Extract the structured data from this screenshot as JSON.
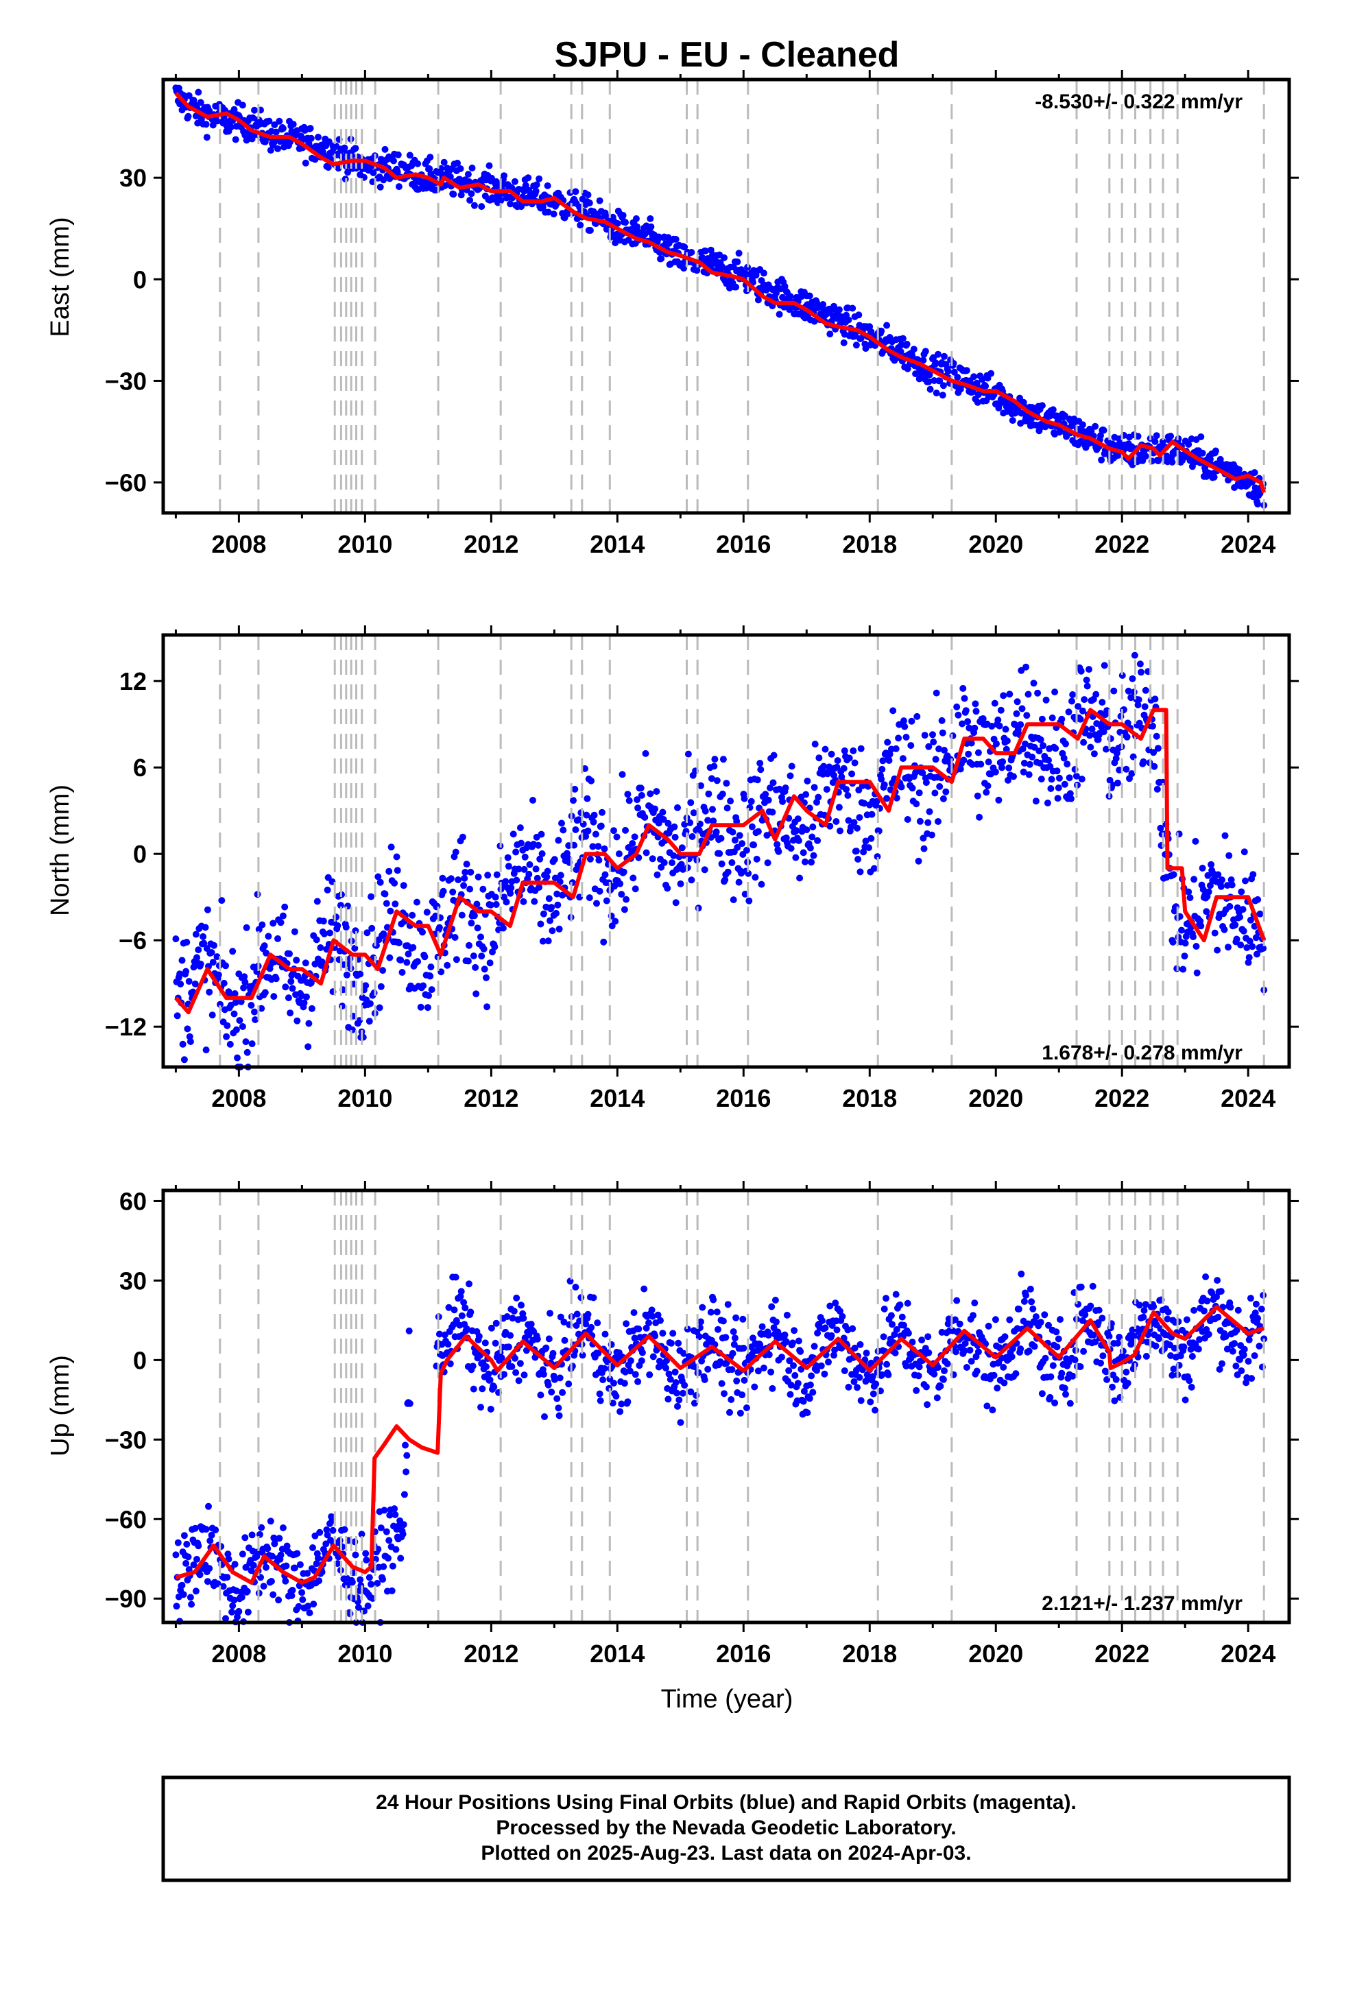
{
  "title": "SJPU  - EU - Cleaned",
  "colors": {
    "observations": "#0000ff",
    "model": "#ff0000",
    "event_lines": "#bbbbbb",
    "frame": "#000000"
  },
  "chart_data": [
    {
      "type": "scatter",
      "panel": "east",
      "ylabel": "East (mm)",
      "xlabel": "",
      "xlim": [
        2006.8,
        2024.65
      ],
      "ylim": [
        -69,
        59
      ],
      "yticks": [
        -60,
        -30,
        0,
        30
      ],
      "xticks": [
        2008,
        2010,
        2012,
        2014,
        2016,
        2018,
        2020,
        2022,
        2024
      ],
      "rate_text": "-8.530+/- 0.322 mm/yr",
      "rate_position": "top-right",
      "series": [
        {
          "kind": "daily-positions",
          "x": [
            2007.0,
            2007.4,
            2007.8,
            2008.2,
            2008.6,
            2009.0,
            2009.5,
            2010.0,
            2010.5,
            2011.0,
            2011.5,
            2012.0,
            2012.5,
            2013.0,
            2013.5,
            2014.0,
            2014.5,
            2015.0,
            2015.5,
            2016.0,
            2016.5,
            2017.0,
            2017.5,
            2018.0,
            2018.5,
            2019.0,
            2019.5,
            2020.0,
            2020.5,
            2021.0,
            2021.5,
            2022.0,
            2022.5,
            2023.0,
            2023.5,
            2024.0,
            2024.25
          ],
          "y": [
            54,
            49,
            47,
            46,
            42,
            41,
            38,
            33,
            33,
            30,
            29,
            27,
            25,
            23,
            20,
            15,
            12,
            6,
            4,
            1,
            -4,
            -8,
            -12,
            -17,
            -21,
            -27,
            -30,
            -34,
            -39,
            -43,
            -47,
            -51,
            -50,
            -51,
            -55,
            -59,
            -63
          ],
          "spread": 2.5
        },
        {
          "kind": "model",
          "x": [
            2007.0,
            2007.2,
            2007.5,
            2007.8,
            2008.0,
            2008.2,
            2008.5,
            2008.8,
            2009.0,
            2009.3,
            2009.5,
            2009.8,
            2010.0,
            2010.3,
            2010.5,
            2010.8,
            2011.0,
            2011.2,
            2011.25,
            2011.5,
            2011.8,
            2012.0,
            2012.3,
            2012.5,
            2012.8,
            2013.0,
            2013.3,
            2013.5,
            2013.8,
            2014.0,
            2014.3,
            2014.5,
            2014.8,
            2015.0,
            2015.3,
            2015.5,
            2015.8,
            2016.0,
            2016.3,
            2016.5,
            2016.8,
            2017.0,
            2017.3,
            2017.5,
            2017.8,
            2018.0,
            2018.3,
            2018.5,
            2018.8,
            2019.0,
            2019.3,
            2019.5,
            2019.8,
            2020.0,
            2020.3,
            2020.5,
            2020.8,
            2021.0,
            2021.3,
            2021.5,
            2021.8,
            2022.0,
            2022.1,
            2022.3,
            2022.5,
            2022.6,
            2022.8,
            2022.95,
            2023.2,
            2023.5,
            2023.8,
            2024.0,
            2024.2,
            2024.25
          ],
          "y": [
            55,
            51,
            48,
            49,
            47,
            44,
            42,
            42,
            40,
            36,
            34,
            35,
            35,
            33,
            30,
            31,
            30,
            28,
            30,
            27,
            28,
            26,
            26,
            23,
            23,
            24,
            20,
            18,
            17,
            15,
            12,
            11,
            8,
            7,
            5,
            2,
            1,
            0,
            -5,
            -7,
            -7,
            -9,
            -13,
            -14,
            -15,
            -17,
            -21,
            -23,
            -25,
            -27,
            -30,
            -31,
            -33,
            -33,
            -36,
            -39,
            -42,
            -43,
            -46,
            -47,
            -50,
            -51,
            -53,
            -49,
            -50,
            -52,
            -48,
            -50,
            -53,
            -56,
            -59,
            -58,
            -60,
            -63
          ]
        }
      ]
    },
    {
      "type": "scatter",
      "panel": "north",
      "ylabel": "North (mm)",
      "xlabel": "",
      "xlim": [
        2006.8,
        2024.65
      ],
      "ylim": [
        -14.8,
        15.2
      ],
      "yticks": [
        -12,
        -6,
        0,
        6,
        12
      ],
      "xticks": [
        2008,
        2010,
        2012,
        2014,
        2016,
        2018,
        2020,
        2022,
        2024
      ],
      "rate_text": "1.678+/- 0.278 mm/yr",
      "rate_position": "bottom-right",
      "series": [
        {
          "kind": "daily-positions",
          "x": [
            2007.0,
            2007.5,
            2008.0,
            2008.5,
            2009.0,
            2009.5,
            2010.0,
            2010.5,
            2011.0,
            2011.5,
            2012.0,
            2012.5,
            2013.0,
            2013.5,
            2014.0,
            2014.5,
            2015.0,
            2015.5,
            2016.0,
            2016.5,
            2017.0,
            2017.5,
            2018.0,
            2018.5,
            2019.0,
            2019.5,
            2020.0,
            2020.5,
            2021.0,
            2021.5,
            2022.0,
            2022.5,
            2022.75,
            2023.0,
            2023.5,
            2024.0,
            2024.25
          ],
          "y": [
            -9,
            -9,
            -10,
            -8,
            -8,
            -7,
            -7,
            -5,
            -6,
            -4,
            -4,
            -2,
            -2,
            0,
            0,
            1,
            1,
            2,
            2,
            2,
            3,
            4,
            4,
            5,
            6,
            7,
            8,
            8,
            8,
            8,
            9,
            9,
            -2,
            -4,
            -4,
            -3,
            -5
          ],
          "spread": 2.2
        },
        {
          "kind": "model",
          "x": [
            2007.0,
            2007.2,
            2007.5,
            2007.8,
            2008.0,
            2008.2,
            2008.5,
            2008.8,
            2009.0,
            2009.3,
            2009.5,
            2009.8,
            2010.0,
            2010.2,
            2010.5,
            2010.8,
            2011.0,
            2011.2,
            2011.5,
            2011.8,
            2012.0,
            2012.3,
            2012.5,
            2012.8,
            2013.0,
            2013.3,
            2013.5,
            2013.8,
            2014.0,
            2014.3,
            2014.5,
            2014.8,
            2015.0,
            2015.3,
            2015.5,
            2015.8,
            2016.0,
            2016.3,
            2016.5,
            2016.8,
            2017.0,
            2017.3,
            2017.5,
            2017.8,
            2018.0,
            2018.3,
            2018.5,
            2018.8,
            2019.0,
            2019.3,
            2019.5,
            2019.8,
            2020.0,
            2020.3,
            2020.5,
            2020.8,
            2021.0,
            2021.3,
            2021.5,
            2021.8,
            2022.0,
            2022.3,
            2022.5,
            2022.7,
            2022.72,
            2022.95,
            2023.0,
            2023.3,
            2023.5,
            2023.8,
            2024.0,
            2024.25
          ],
          "y": [
            -10,
            -11,
            -8,
            -10,
            -10,
            -10,
            -7,
            -8,
            -8,
            -9,
            -6,
            -7,
            -7,
            -8,
            -4,
            -5,
            -5,
            -7,
            -3,
            -4,
            -4,
            -5,
            -2,
            -2,
            -2,
            -3,
            0,
            0,
            -1,
            0,
            2,
            1,
            0,
            0,
            2,
            2,
            2,
            3,
            1,
            4,
            3,
            2,
            5,
            5,
            5,
            3,
            6,
            6,
            6,
            5,
            8,
            8,
            7,
            7,
            9,
            9,
            9,
            8,
            10,
            9,
            9,
            8,
            10,
            10,
            -1,
            -1,
            -4,
            -6,
            -3,
            -3,
            -3,
            -6
          ]
        }
      ]
    },
    {
      "type": "scatter",
      "panel": "up",
      "ylabel": "Up (mm)",
      "xlabel": "Time (year)",
      "xlim": [
        2006.8,
        2024.65
      ],
      "ylim": [
        -99,
        64
      ],
      "yticks": [
        -90,
        -60,
        -30,
        0,
        30,
        60
      ],
      "xticks": [
        2008,
        2010,
        2012,
        2014,
        2016,
        2018,
        2020,
        2022,
        2024
      ],
      "rate_text": "2.121+/- 1.237 mm/yr",
      "rate_position": "bottom-right",
      "series": [
        {
          "kind": "daily-positions",
          "x": [
            2007.0,
            2007.5,
            2008.0,
            2008.5,
            2009.0,
            2009.5,
            2010.0,
            2010.3,
            2010.6,
            2010.7,
            2011.0,
            2011.5,
            2012.0,
            2012.5,
            2013.0,
            2013.5,
            2014.0,
            2014.5,
            2015.0,
            2015.5,
            2016.0,
            2016.5,
            2017.0,
            2017.5,
            2018.0,
            2018.5,
            2019.0,
            2019.5,
            2020.0,
            2020.5,
            2021.0,
            2021.5,
            2022.0,
            2022.5,
            2023.0,
            2023.5,
            2024.0,
            2024.25
          ],
          "y": [
            -80,
            -75,
            -82,
            -78,
            -80,
            -76,
            -80,
            -76,
            -72,
            0,
            0,
            10,
            0,
            5,
            0,
            8,
            -2,
            5,
            0,
            3,
            0,
            5,
            0,
            6,
            0,
            5,
            0,
            6,
            3,
            8,
            2,
            10,
            4,
            12,
            8,
            14,
            10,
            12
          ],
          "spread": 8
        },
        {
          "kind": "model",
          "x": [
            2007.0,
            2007.3,
            2007.6,
            2007.9,
            2008.2,
            2008.4,
            2008.7,
            2009.0,
            2009.2,
            2009.5,
            2009.8,
            2010.0,
            2010.1,
            2010.15,
            2010.3,
            2010.5,
            2010.7,
            2010.9,
            2011.15,
            2011.2,
            2011.3,
            2011.6,
            2012.0,
            2012.1,
            2012.5,
            2013.0,
            2013.5,
            2014.0,
            2014.5,
            2015.0,
            2015.5,
            2016.0,
            2016.5,
            2017.0,
            2017.5,
            2018.0,
            2018.5,
            2019.0,
            2019.5,
            2020.0,
            2020.5,
            2021.0,
            2021.5,
            2021.8,
            2021.82,
            2022.0,
            2022.2,
            2022.5,
            2022.8,
            2023.0,
            2023.5,
            2024.0,
            2024.25
          ],
          "y": [
            -82,
            -80,
            -70,
            -80,
            -84,
            -74,
            -80,
            -84,
            -82,
            -70,
            -78,
            -80,
            -78,
            -37,
            -32,
            -25,
            -30,
            -33,
            -35,
            -5,
            0,
            9,
            0,
            -4,
            7,
            -3,
            10,
            -2,
            9,
            -3,
            5,
            -4,
            7,
            -3,
            8,
            -4,
            8,
            -2,
            11,
            1,
            12,
            1,
            15,
            3,
            -3,
            -1,
            2,
            18,
            10,
            8,
            20,
            10,
            12
          ]
        }
      ]
    }
  ],
  "event_lines": [
    2007.7,
    2008.31,
    2009.52,
    2009.62,
    2009.7,
    2009.78,
    2009.86,
    2009.95,
    2010.16,
    2011.16,
    2012.15,
    2013.27,
    2013.44,
    2013.88,
    2015.1,
    2015.27,
    2016.07,
    2018.13,
    2019.3,
    2021.28,
    2021.8,
    2022.0,
    2022.21,
    2022.45,
    2022.65,
    2022.88,
    2024.25
  ],
  "footer": {
    "line1": "24 Hour Positions Using Final Orbits (blue) and Rapid Orbits (magenta).",
    "line2": "Processed by the Nevada Geodetic Laboratory.",
    "line3": "Plotted on 2025-Aug-23. Last data on 2024-Apr-03."
  }
}
